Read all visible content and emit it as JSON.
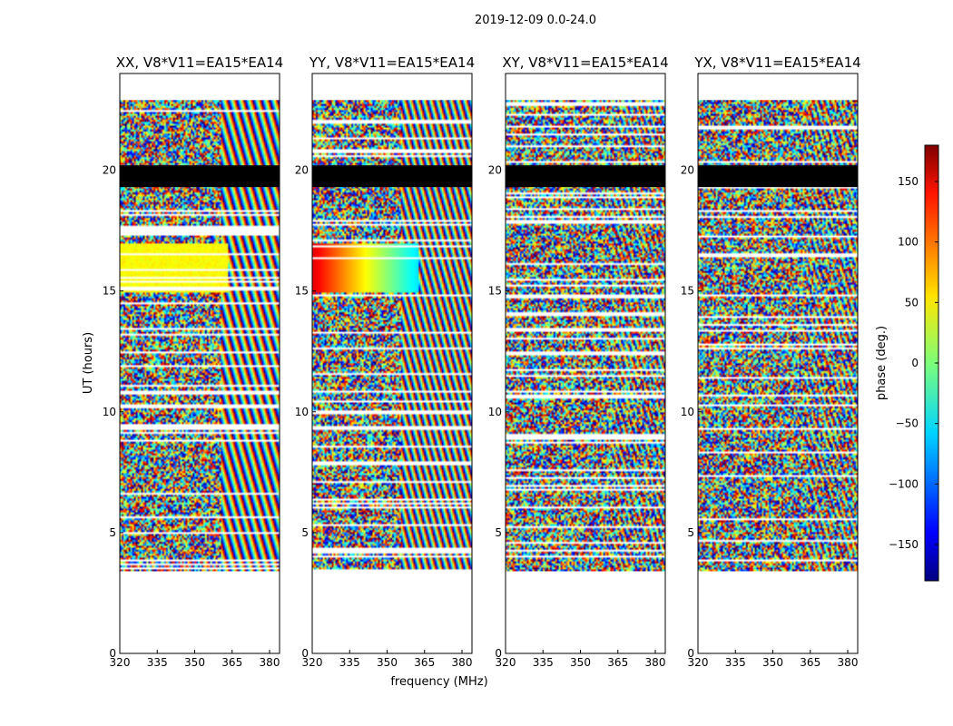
{
  "chart_data": {
    "type": "heatmap",
    "suptitle": "2019-12-09 0.0-24.0",
    "panels": [
      {
        "title": "XX, V8*V11=EA15*EA14",
        "pattern": "xx"
      },
      {
        "title": "YY, V8*V11=EA15*EA14",
        "pattern": "yy"
      },
      {
        "title": "XY, V8*V11=EA15*EA14",
        "pattern": "noise"
      },
      {
        "title": "YX, V8*V11=EA15*EA14",
        "pattern": "noise"
      }
    ],
    "xlabel": "frequency (MHz)",
    "ylabel": "UT (hours)",
    "xlim": [
      320,
      384
    ],
    "ylim": [
      0,
      24
    ],
    "x_ticks": [
      320,
      335,
      350,
      365,
      380
    ],
    "x_tick_labels": [
      "320",
      "335",
      "350",
      "365",
      "380"
    ],
    "y_ticks": [
      0,
      5,
      10,
      15,
      20
    ],
    "y_tick_labels": [
      "0",
      "5",
      "10",
      "15",
      "20"
    ],
    "data_time_range": [
      3.4,
      22.9
    ],
    "blocked_time_range": [
      19.3,
      20.2
    ],
    "colorbar": {
      "label": "phase (deg.)",
      "range": [
        -180,
        180
      ],
      "ticks": [
        -150,
        -100,
        -50,
        0,
        50,
        100,
        150
      ],
      "tick_labels": [
        "−150",
        "−100",
        "−50",
        "0",
        "50",
        "100",
        "150"
      ],
      "colormap": "jet"
    }
  }
}
